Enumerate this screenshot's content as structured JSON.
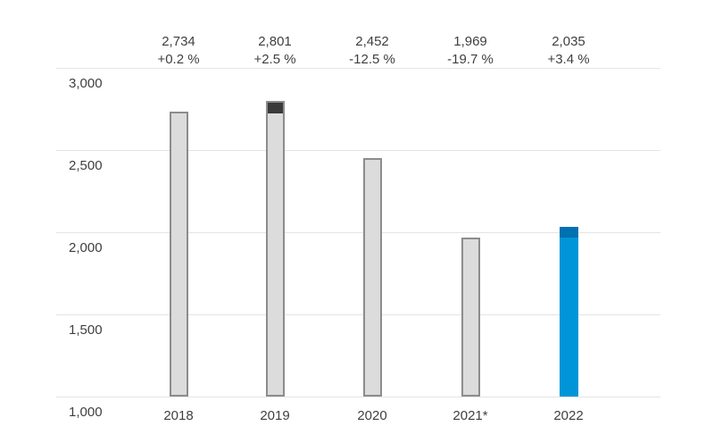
{
  "chart_data": {
    "type": "bar",
    "title": "",
    "xlabel": "",
    "ylabel": "",
    "categories": [
      "2018",
      "2019",
      "2020",
      "2021*",
      "2022"
    ],
    "values": [
      2734,
      2801,
      2452,
      1969,
      2035
    ],
    "value_labels": [
      "2,734",
      "2,801",
      "2,452",
      "1,969",
      "2,035"
    ],
    "change_labels": [
      "+0.2 %",
      "+2.5 %",
      "-12.5 %",
      "-19.7 %",
      "+3.4 %"
    ],
    "accent_bar_index": 4,
    "highlight_segments": [
      {
        "index": 1,
        "from": 2734,
        "to": 2801
      },
      {
        "index": 4,
        "from": 1969,
        "to": 2035
      }
    ],
    "ylim": [
      1000,
      3000
    ],
    "yticks": [
      3000,
      2500,
      2000,
      1500,
      1000
    ],
    "ytick_labels": [
      "3,000",
      "2,500",
      "2,000",
      "1,500",
      "1,000"
    ],
    "grid": true,
    "legend": null,
    "colors": {
      "bar_fill": "#dcdcdc",
      "bar_border": "#8c8c8c",
      "gain_segment": "#3a3a3a",
      "accent_fill": "#0095d8",
      "accent_segment": "#0071b0",
      "gridline": "#e4e4e4",
      "text": "#3f3f3f",
      "background": "#ffffff"
    }
  }
}
